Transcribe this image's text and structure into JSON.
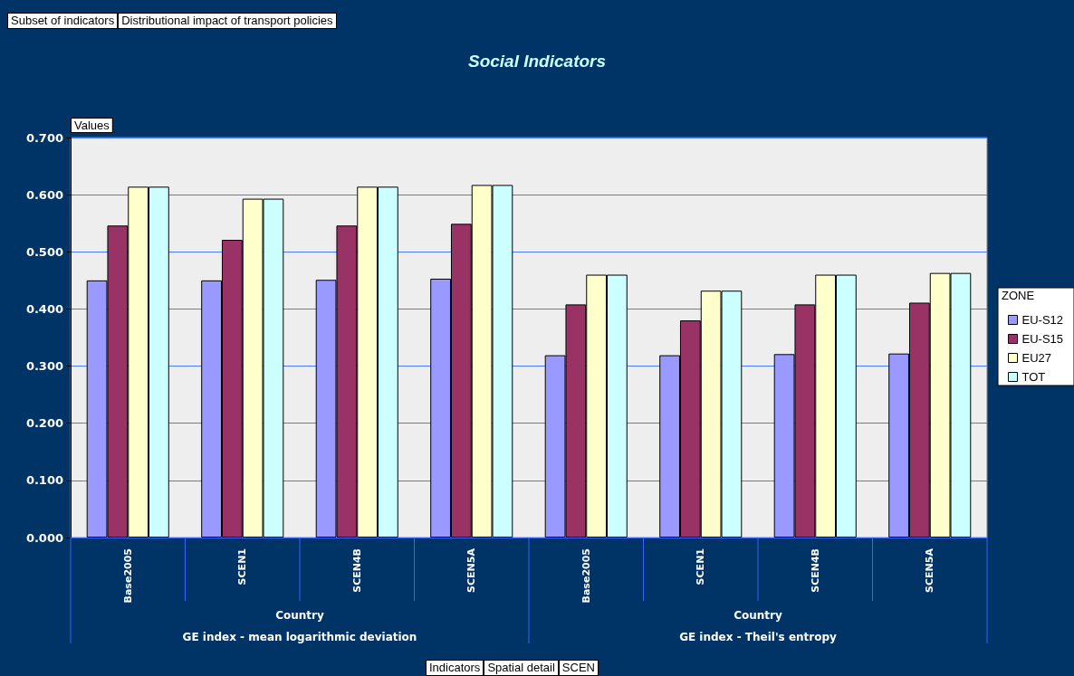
{
  "chart_data": {
    "type": "bar",
    "title": "Social Indicators",
    "ylabel": "Values",
    "legend_title": "ZONE",
    "categories": [
      "Base2005",
      "SCEN1",
      "SCEN4B",
      "SCEN5A",
      "Base2005",
      "SCEN1",
      "SCEN4B",
      "SCEN5A"
    ],
    "series": [
      {
        "name": "EU-S12",
        "color": "#9999ff",
        "values": [
          0.45,
          0.45,
          0.451,
          0.453,
          0.319,
          0.319,
          0.321,
          0.322
        ]
      },
      {
        "name": "EU-S15",
        "color": "#993366",
        "values": [
          0.546,
          0.521,
          0.546,
          0.549,
          0.408,
          0.38,
          0.408,
          0.411
        ]
      },
      {
        "name": "EU27",
        "color": "#ffffcc",
        "values": [
          0.614,
          0.593,
          0.614,
          0.617,
          0.46,
          0.432,
          0.46,
          0.463
        ]
      },
      {
        "name": "TOT",
        "color": "#ccffff",
        "values": [
          0.614,
          0.593,
          0.614,
          0.617,
          0.46,
          0.432,
          0.46,
          0.463
        ]
      }
    ],
    "ylim": [
      0,
      0.7
    ],
    "yticks": [
      {
        "value": 0,
        "label": "0.000"
      },
      {
        "value": 0.1,
        "label": "0.100"
      },
      {
        "value": 0.2,
        "label": "0.200"
      },
      {
        "value": 0.3,
        "label": "0.300"
      },
      {
        "value": 0.4,
        "label": "0.400"
      },
      {
        "value": 0.5,
        "label": "0.500"
      },
      {
        "value": 0.6,
        "label": "0.600"
      },
      {
        "value": 0.7,
        "label": "0.700"
      }
    ],
    "grid": "y",
    "legend": "right",
    "annotations": [
      "Subset of indicators",
      "Distributional impact of transport policies",
      "Country",
      "GE index - mean logarithmic deviation",
      "Country",
      "GE index - Theil's entropy",
      "Indicators",
      "Spatial detail",
      "SCEN"
    ]
  }
}
